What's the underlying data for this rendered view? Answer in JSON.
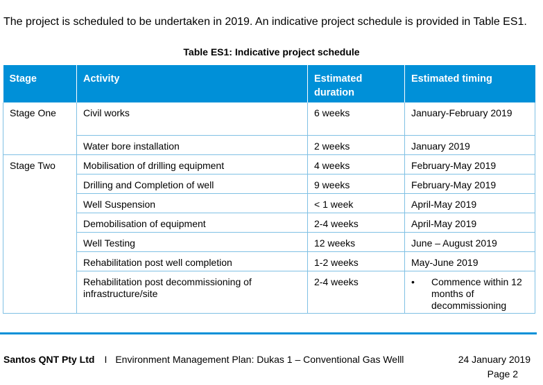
{
  "intro": "The project is scheduled to be undertaken in 2019. An indicative project schedule is provided in Table ES1.",
  "table": {
    "caption": "Table ES1: Indicative project schedule",
    "headers": {
      "stage": "Stage",
      "activity": "Activity",
      "duration": "Estimated duration",
      "timing": "Estimated timing"
    },
    "stages": [
      "Stage One",
      "Stage Two"
    ],
    "rows": [
      {
        "activity": "Civil works",
        "duration": "6 weeks",
        "timing": "January-February 2019"
      },
      {
        "activity": "Water bore installation",
        "duration": "2 weeks",
        "timing": "January 2019"
      },
      {
        "activity": "Mobilisation of drilling equipment",
        "duration": "4 weeks",
        "timing": "February-May 2019"
      },
      {
        "activity": "Drilling and Completion of well",
        "duration": "9 weeks",
        "timing": "February-May 2019"
      },
      {
        "activity": "Well Suspension",
        "duration": "< 1 week",
        "timing": "April-May 2019"
      },
      {
        "activity": "Demobilisation of equipment",
        "duration": "2-4 weeks",
        "timing": "April-May 2019"
      },
      {
        "activity": "Well Testing",
        "duration": "12 weeks",
        "timing": "June – August 2019"
      },
      {
        "activity": "Rehabilitation post well completion",
        "duration": "1-2 weeks",
        "timing": "May-June 2019"
      },
      {
        "activity": "Rehabilitation post decommissioning of infrastructure/site",
        "duration": "2-4 weeks",
        "timing": "Commence within 12 months of decommissioning",
        "bullet": "•"
      }
    ]
  },
  "footer": {
    "company": "Santos QNT Pty Ltd",
    "separator": "I",
    "document": "Environment Management Plan: Dukas 1 – Conventional Gas Welll",
    "date": "24 January 2019",
    "page": "Page 2"
  },
  "colors": {
    "header_blue": "#0090d8",
    "grid_line": "#7fc0e4"
  }
}
